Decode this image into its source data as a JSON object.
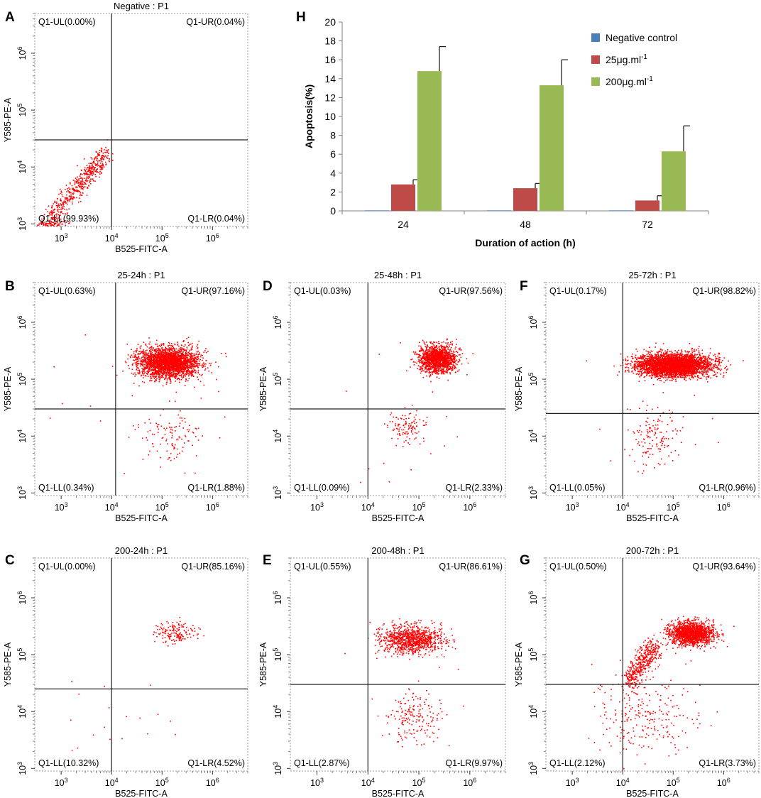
{
  "chart_data": [
    {
      "type": "scatter",
      "panel": "A",
      "title": "Negative : P1",
      "xlabel": "B525-FITC-A",
      "ylabel": "Y585-PE-A",
      "scale": "log",
      "xlim": [
        300,
        5000000
      ],
      "ylim": [
        900,
        5000000
      ],
      "x_ticks": [
        "10^3",
        "10^4",
        "10^5",
        "10^6"
      ],
      "y_ticks": [
        "10^3",
        "10^4",
        "10^5",
        "10^6"
      ],
      "gate": {
        "x": 10000,
        "y": 30000
      },
      "quadrants": {
        "UL": "Q1-UL(0.00%)",
        "UR": "Q1-UR(0.04%)",
        "LL": "Q1-LL(99.93%)",
        "LR": "Q1-LR(0.04%)"
      },
      "populations": [
        {
          "shape": "diag",
          "cx": 1500,
          "cy": 3500,
          "x0": 500,
          "y0": 1100,
          "x1": 8000,
          "y1": 18000,
          "n": 520,
          "sx": 0.07,
          "sy": 0.1
        },
        {
          "shape": "blob",
          "cx": 500,
          "cy": 1000,
          "n": 70,
          "sx": 0.12,
          "sy": 0.05
        },
        {
          "shape": "blob",
          "cx": 900,
          "cy": 1050,
          "n": 30,
          "sx": 0.12,
          "sy": 0.04
        }
      ]
    },
    {
      "type": "scatter",
      "panel": "B",
      "title": "25-24h : P1",
      "xlabel": "B525-FITC-A",
      "ylabel": "Y585-PE-A",
      "scale": "log",
      "xlim": [
        300,
        5000000
      ],
      "ylim": [
        900,
        5000000
      ],
      "x_ticks": [
        "10^3",
        "10^4",
        "10^5",
        "10^6"
      ],
      "y_ticks": [
        "10^3",
        "10^4",
        "10^5",
        "10^6"
      ],
      "gate": {
        "x": 12000,
        "y": 30000
      },
      "quadrants": {
        "UL": "Q1-UL(0.63%)",
        "UR": "Q1-UR(97.16%)",
        "LL": "Q1-LL(0.34%)",
        "LR": "Q1-LR(1.88%)"
      },
      "populations": [
        {
          "shape": "blob",
          "cx": 130000,
          "cy": 200000,
          "n": 2600,
          "sx": 0.3,
          "sy": 0.13
        },
        {
          "shape": "blob",
          "cx": 140000,
          "cy": 10000,
          "n": 110,
          "sx": 0.3,
          "sy": 0.25
        },
        {
          "shape": "uniform",
          "x0": 500,
          "x1": 3000000,
          "y0": 1500,
          "y1": 800000,
          "n": 25
        }
      ]
    },
    {
      "type": "scatter",
      "panel": "C",
      "title": "200-24h : P1",
      "xlabel": "B525-FITC-A",
      "ylabel": "Y585-PE-A",
      "scale": "log",
      "xlim": [
        300,
        5000000
      ],
      "ylim": [
        900,
        5000000
      ],
      "x_ticks": [
        "10^3",
        "10^4",
        "10^5",
        "10^6"
      ],
      "y_ticks": [
        "10^3",
        "10^4",
        "10^5",
        "10^6"
      ],
      "gate": {
        "x": 10000,
        "y": 25000
      },
      "quadrants": {
        "UL": "Q1-UL(0.00%)",
        "UR": "Q1-UR(85.16%)",
        "LL": "Q1-LL(10.32%)",
        "LR": "Q1-LR(4.52%)"
      },
      "populations": [
        {
          "shape": "blob",
          "cx": 180000,
          "cy": 250000,
          "n": 160,
          "sx": 0.2,
          "sy": 0.1
        },
        {
          "shape": "uniform",
          "x0": 1500,
          "x1": 300000,
          "y0": 2000,
          "y1": 60000,
          "n": 18
        }
      ]
    },
    {
      "type": "scatter",
      "panel": "D",
      "title": "25-48h : P1",
      "xlabel": "B525-FITC-A",
      "ylabel": "Y585-PE-A",
      "scale": "log",
      "xlim": [
        300,
        5000000
      ],
      "ylim": [
        900,
        5000000
      ],
      "x_ticks": [
        "10^3",
        "10^4",
        "10^5",
        "10^6"
      ],
      "y_ticks": [
        "10^3",
        "10^4",
        "10^5",
        "10^6"
      ],
      "gate": {
        "x": 10000,
        "y": 30000
      },
      "quadrants": {
        "UL": "Q1-UL(0.03%)",
        "UR": "Q1-UR(97.56%)",
        "LL": "Q1-LL(0.09%)",
        "LR": "Q1-LR(2.33%)"
      },
      "populations": [
        {
          "shape": "blob",
          "cx": 230000,
          "cy": 230000,
          "n": 1400,
          "sx": 0.18,
          "sy": 0.12
        },
        {
          "shape": "blob",
          "cx": 60000,
          "cy": 15000,
          "n": 110,
          "sx": 0.2,
          "sy": 0.14
        },
        {
          "shape": "uniform",
          "x0": 3000,
          "x1": 700000,
          "y0": 1500,
          "y1": 500000,
          "n": 14
        }
      ]
    },
    {
      "type": "scatter",
      "panel": "E",
      "title": "200-48h : P1",
      "xlabel": "B525-FITC-A",
      "ylabel": "Y585-PE-A",
      "scale": "log",
      "xlim": [
        300,
        5000000
      ],
      "ylim": [
        900,
        5000000
      ],
      "x_ticks": [
        "10^3",
        "10^4",
        "10^5",
        "10^6"
      ],
      "y_ticks": [
        "10^3",
        "10^4",
        "10^5",
        "10^6"
      ],
      "gate": {
        "x": 10000,
        "y": 30000
      },
      "quadrants": {
        "UL": "Q1-UL(0.55%)",
        "UR": "Q1-UR(86.61%)",
        "LL": "Q1-LL(2.87%)",
        "LR": "Q1-LR(9.97%)"
      },
      "populations": [
        {
          "shape": "blob",
          "cx": 70000,
          "cy": 190000,
          "n": 1000,
          "sx": 0.3,
          "sy": 0.12
        },
        {
          "shape": "blob",
          "cx": 80000,
          "cy": 8000,
          "n": 170,
          "sx": 0.28,
          "sy": 0.22
        },
        {
          "shape": "uniform",
          "x0": 1500,
          "x1": 1000000,
          "y0": 2000,
          "y1": 200000,
          "n": 14
        }
      ]
    },
    {
      "type": "scatter",
      "panel": "F",
      "title": "25-72h : P1",
      "xlabel": "B525-FITC-A",
      "ylabel": "Y585-PE-A",
      "scale": "log",
      "xlim": [
        300,
        5000000
      ],
      "ylim": [
        900,
        5000000
      ],
      "x_ticks": [
        "10^3",
        "10^4",
        "10^5",
        "10^6"
      ],
      "y_ticks": [
        "10^3",
        "10^4",
        "10^5",
        "10^6"
      ],
      "gate": {
        "x": 10000,
        "y": 25000
      },
      "quadrants": {
        "UL": "Q1-UL(0.17%)",
        "UR": "Q1-UR(98.82%)",
        "LL": "Q1-LL(0.05%)",
        "LR": "Q1-LR(0.96%)"
      },
      "populations": [
        {
          "shape": "blob",
          "cx": 100000,
          "cy": 180000,
          "n": 3600,
          "sx": 0.36,
          "sy": 0.1
        },
        {
          "shape": "blob",
          "cx": 40000,
          "cy": 10000,
          "n": 140,
          "sx": 0.25,
          "sy": 0.25
        },
        {
          "shape": "uniform",
          "x0": 1500,
          "x1": 1500000,
          "y0": 1500,
          "y1": 500000,
          "n": 12
        }
      ]
    },
    {
      "type": "scatter",
      "panel": "G",
      "title": "200-72h : P1",
      "xlabel": "B525-FITC-A",
      "ylabel": "Y585-PE-A",
      "scale": "log",
      "xlim": [
        300,
        5000000
      ],
      "ylim": [
        900,
        5000000
      ],
      "x_ticks": [
        "10^3",
        "10^4",
        "10^5",
        "10^6"
      ],
      "y_ticks": [
        "10^3",
        "10^4",
        "10^5",
        "10^6"
      ],
      "gate": {
        "x": 10000,
        "y": 30000
      },
      "quadrants": {
        "UL": "Q1-UL(0.50%)",
        "UR": "Q1-UR(93.64%)",
        "LL": "Q1-LL(2.12%)",
        "LR": "Q1-LR(3.73%)"
      },
      "populations": [
        {
          "shape": "blob",
          "cx": 230000,
          "cy": 240000,
          "n": 1500,
          "sx": 0.22,
          "sy": 0.1
        },
        {
          "shape": "diag",
          "cx": 20000,
          "cy": 70000,
          "x0": 12000,
          "y0": 30000,
          "x1": 40000,
          "y1": 150000,
          "n": 450,
          "sx": 0.09,
          "sy": 0.1
        },
        {
          "shape": "blob",
          "cx": 30000,
          "cy": 8000,
          "n": 240,
          "sx": 0.55,
          "sy": 0.38
        }
      ]
    },
    {
      "type": "bar",
      "panel": "H",
      "categories": [
        "24",
        "48",
        "72"
      ],
      "series": [
        {
          "name": "Negative control",
          "values": [
            0.05,
            0.05,
            0.05
          ],
          "errors": [
            0,
            0,
            0
          ],
          "color": "#4a7ebb"
        },
        {
          "name": "25μg.ml",
          "values": [
            2.8,
            2.4,
            1.1
          ],
          "errors": [
            0.5,
            0.5,
            0.5
          ],
          "color": "#be4b48"
        },
        {
          "name": "200μg.ml",
          "values": [
            14.8,
            13.3,
            6.3
          ],
          "errors": [
            2.6,
            2.7,
            2.7
          ],
          "color": "#98b954"
        }
      ],
      "legend_superscript": [
        "",
        "-1",
        "-1"
      ],
      "xlabel": "Duration of action (h)",
      "ylabel": "Apoptosis(%)",
      "ylim": [
        0,
        20
      ],
      "y_ticks": [
        0,
        2,
        4,
        6,
        8,
        10,
        12,
        14,
        16,
        18,
        20
      ],
      "legend_position": "top-right"
    }
  ]
}
